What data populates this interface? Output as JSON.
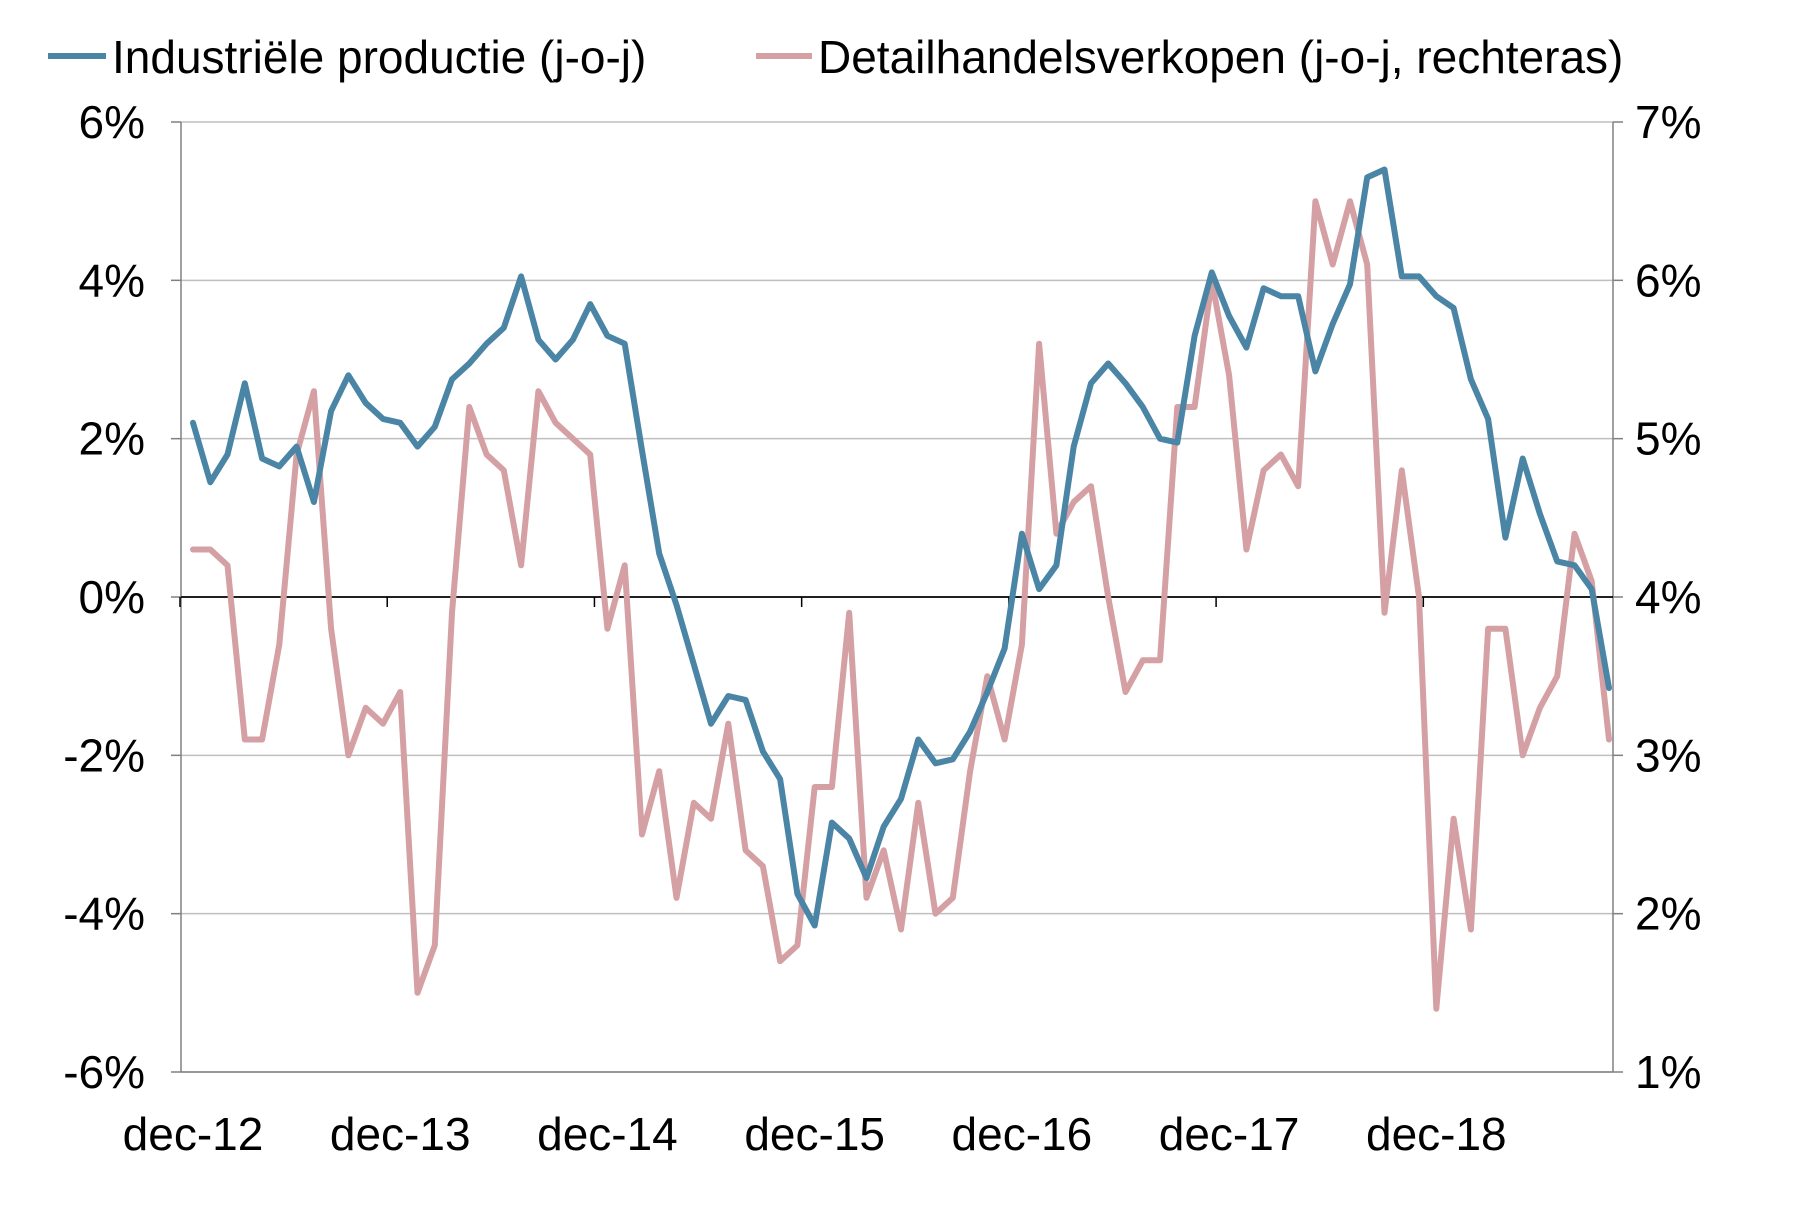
{
  "chart_data": {
    "type": "line",
    "series": [
      {
        "name": "Industriële productie (j-o-j)",
        "axis": "left",
        "color": "#4a85a6",
        "values": [
          2.2,
          1.45,
          1.8,
          2.7,
          1.75,
          1.65,
          1.9,
          1.2,
          2.35,
          2.8,
          2.45,
          2.25,
          2.2,
          1.9,
          2.15,
          2.75,
          2.95,
          3.2,
          3.4,
          4.05,
          3.25,
          3.0,
          3.25,
          3.7,
          3.3,
          3.2,
          1.85,
          0.55,
          -0.1,
          -0.85,
          -1.6,
          -1.25,
          -1.3,
          -1.95,
          -2.3,
          -3.75,
          -4.15,
          -2.85,
          -3.05,
          -3.55,
          -2.9,
          -2.55,
          -1.8,
          -2.1,
          -2.05,
          -1.7,
          -1.2,
          -0.65,
          0.8,
          0.1,
          0.4,
          1.9,
          2.7,
          2.95,
          2.7,
          2.4,
          2.0,
          1.95,
          3.3,
          4.1,
          3.55,
          3.15,
          3.9,
          3.8,
          3.8,
          2.85,
          3.45,
          3.95,
          5.3,
          5.4,
          4.05,
          4.05,
          3.8,
          3.65,
          2.75,
          2.25,
          0.75,
          1.75,
          1.05,
          0.45,
          0.4,
          0.1,
          -1.15
        ]
      },
      {
        "name": "Detailhandelsverkopen (j-o-j, rechteras)",
        "axis": "right",
        "color": "#d4a0a4",
        "values": [
          4.3,
          4.3,
          4.2,
          3.1,
          3.1,
          3.7,
          4.9,
          5.3,
          3.8,
          3.0,
          3.3,
          3.2,
          3.4,
          1.5,
          1.8,
          3.9,
          5.2,
          4.9,
          4.8,
          4.2,
          5.3,
          5.1,
          5.0,
          4.9,
          3.8,
          4.2,
          2.5,
          2.9,
          2.1,
          2.7,
          2.6,
          3.2,
          2.4,
          2.3,
          1.7,
          1.8,
          2.8,
          2.8,
          3.9,
          2.1,
          2.4,
          1.9,
          2.7,
          2.0,
          2.1,
          2.9,
          3.5,
          3.1,
          3.7,
          5.6,
          4.4,
          4.6,
          4.7,
          4.0,
          3.4,
          3.6,
          3.6,
          5.2,
          5.2,
          6.0,
          5.4,
          4.3,
          4.8,
          4.9,
          4.7,
          6.5,
          6.1,
          6.5,
          6.1,
          3.9,
          4.8,
          4.0,
          1.4,
          2.6,
          1.9,
          3.8,
          3.8,
          3.0,
          3.3,
          3.5,
          4.4,
          4.1,
          3.1
        ]
      }
    ],
    "x_tick_labels": [
      "dec-12",
      "dec-13",
      "dec-14",
      "dec-15",
      "dec-16",
      "dec-17",
      "dec-18"
    ],
    "x_tick_index": [
      0,
      12,
      24,
      36,
      48,
      60,
      72
    ],
    "y_left": {
      "ylim": [
        -6,
        6
      ],
      "step": 2,
      "tick_labels": [
        "-6%",
        "-4%",
        "-2%",
        "0%",
        "2%",
        "4%",
        "6%"
      ]
    },
    "y_right": {
      "ylim": [
        1,
        7
      ],
      "step": 1,
      "tick_labels": [
        "1%",
        "2%",
        "3%",
        "4%",
        "5%",
        "6%",
        "7%"
      ]
    },
    "grid": "horizontal",
    "legend": {
      "position": "top"
    }
  }
}
